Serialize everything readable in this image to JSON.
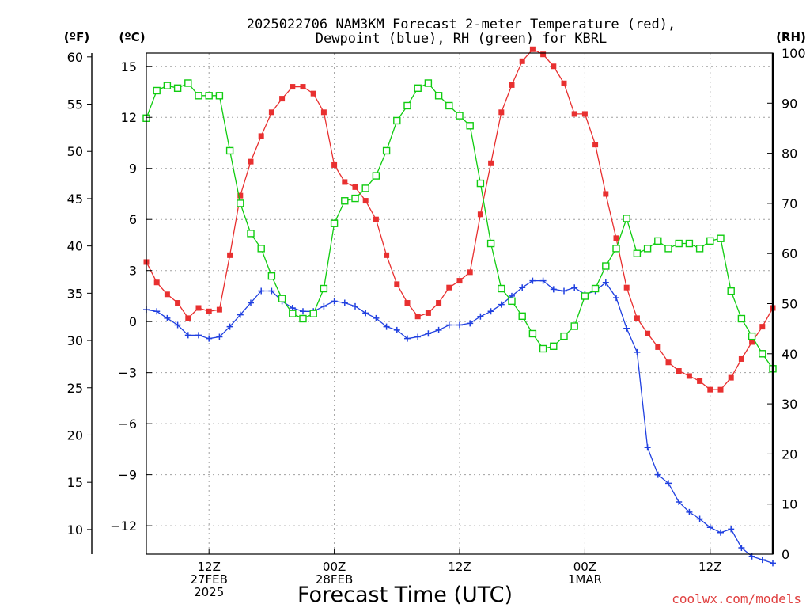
{
  "chart_data": {
    "type": "line",
    "title_line1": "2025022706 NAM3KM Forecast 2-meter Temperature (red),",
    "title_line2": "Dewpoint (blue), RH (green) for KBRL",
    "xlabel": "Forecast Time (UTC)",
    "watermark": "coolwx.com/models",
    "unit_labels": {
      "fahrenheit": "(ºF)",
      "celsius": "(ºC)",
      "rh": "(RH)"
    },
    "x_range_hours": [
      0,
      60
    ],
    "celsius_range": [
      -13.67,
      15.78
    ],
    "rh_range": [
      0,
      100
    ],
    "x_ticks": [
      {
        "hour": 6,
        "line1": "12Z",
        "line2": "27FEB",
        "line3": "2025"
      },
      {
        "hour": 18,
        "line1": "00Z",
        "line2": "28FEB",
        "line3": ""
      },
      {
        "hour": 30,
        "line1": "12Z",
        "line2": "",
        "line3": ""
      },
      {
        "hour": 42,
        "line1": "00Z",
        "line2": "1MAR",
        "line3": ""
      },
      {
        "hour": 54,
        "line1": "12Z",
        "line2": "",
        "line3": ""
      }
    ],
    "celsius_ticks": [
      {
        "value": 15,
        "label": "15"
      },
      {
        "value": 12,
        "label": "12"
      },
      {
        "value": 9,
        "label": "9"
      },
      {
        "value": 6,
        "label": "6"
      },
      {
        "value": 3,
        "label": "3"
      },
      {
        "value": 0,
        "label": "0"
      },
      {
        "value": -3,
        "label": "−3"
      },
      {
        "value": -6,
        "label": "−6"
      },
      {
        "value": -9,
        "label": "−9"
      },
      {
        "value": -12,
        "label": "−12"
      }
    ],
    "fahrenheit_ticks": [
      {
        "value": 60,
        "label": "60"
      },
      {
        "value": 55,
        "label": "55"
      },
      {
        "value": 50,
        "label": "50"
      },
      {
        "value": 45,
        "label": "45"
      },
      {
        "value": 40,
        "label": "40"
      },
      {
        "value": 35,
        "label": "35"
      },
      {
        "value": 30,
        "label": "30"
      },
      {
        "value": 25,
        "label": "25"
      },
      {
        "value": 20,
        "label": "20"
      },
      {
        "value": 15,
        "label": "15"
      },
      {
        "value": 10,
        "label": "10"
      }
    ],
    "rh_ticks": [
      {
        "value": 100,
        "label": "100"
      },
      {
        "value": 90,
        "label": "90"
      },
      {
        "value": 80,
        "label": "80"
      },
      {
        "value": 70,
        "label": "70"
      },
      {
        "value": 60,
        "label": "60"
      },
      {
        "value": 50,
        "label": "50"
      },
      {
        "value": 40,
        "label": "40"
      },
      {
        "value": 30,
        "label": "30"
      },
      {
        "value": 20,
        "label": "20"
      },
      {
        "value": 10,
        "label": "10"
      },
      {
        "value": 0,
        "label": "0"
      }
    ],
    "grid": true,
    "series": [
      {
        "color": "#e83030",
        "marker": "filled-square",
        "axis": "celsius",
        "hours": [
          0,
          1,
          2,
          3,
          4,
          5,
          6,
          7,
          8,
          9,
          10,
          11,
          12,
          13,
          14,
          15,
          16,
          17,
          18,
          19,
          20,
          21,
          22,
          23,
          24,
          25,
          26,
          27,
          28,
          29,
          30,
          31,
          32,
          33,
          34,
          35,
          36,
          37,
          38,
          39,
          40,
          41,
          42,
          43,
          44,
          45,
          46,
          47,
          48,
          49,
          50,
          51,
          52,
          53,
          54,
          55,
          56,
          57,
          58,
          59,
          60
        ],
        "values": [
          3.5,
          2.3,
          1.6,
          1.1,
          0.2,
          0.8,
          0.6,
          0.7,
          3.9,
          7.4,
          9.4,
          10.9,
          12.3,
          13.1,
          13.8,
          13.8,
          13.4,
          12.3,
          9.2,
          8.2,
          7.9,
          7.1,
          6.0,
          3.9,
          2.2,
          1.1,
          0.3,
          0.5,
          1.1,
          2.0,
          2.4,
          2.9,
          6.3,
          9.3,
          12.3,
          13.9,
          15.3,
          16.0,
          15.7,
          15.0,
          14.0,
          12.2,
          12.2,
          10.4,
          7.5,
          4.9,
          2.0,
          0.2,
          -0.7,
          -1.5,
          -2.4,
          -2.9,
          -3.2,
          -3.5,
          -4.0,
          -4.0,
          -3.3,
          -2.2,
          -1.2,
          -0.3,
          0.8
        ]
      },
      {
        "color": "#2040e0",
        "marker": "plus",
        "axis": "celsius",
        "hours": [
          0,
          1,
          2,
          3,
          4,
          5,
          6,
          7,
          8,
          9,
          10,
          11,
          12,
          13,
          14,
          15,
          16,
          17,
          18,
          19,
          20,
          21,
          22,
          23,
          24,
          25,
          26,
          27,
          28,
          29,
          30,
          31,
          32,
          33,
          34,
          35,
          36,
          37,
          38,
          39,
          40,
          41,
          42,
          43,
          44,
          45,
          46,
          47,
          48,
          49,
          50,
          51,
          52,
          53,
          54,
          55,
          56,
          57,
          58,
          59,
          60
        ],
        "values": [
          0.7,
          0.6,
          0.2,
          -0.2,
          -0.8,
          -0.8,
          -1.0,
          -0.9,
          -0.3,
          0.4,
          1.1,
          1.8,
          1.8,
          1.2,
          0.8,
          0.6,
          0.6,
          0.9,
          1.2,
          1.1,
          0.9,
          0.5,
          0.2,
          -0.3,
          -0.5,
          -1.0,
          -0.9,
          -0.7,
          -0.5,
          -0.2,
          -0.2,
          -0.1,
          0.3,
          0.6,
          1.0,
          1.5,
          2.0,
          2.4,
          2.4,
          1.9,
          1.8,
          2.0,
          1.6,
          1.8,
          2.3,
          1.4,
          -0.4,
          -1.8,
          -7.4,
          -9.0,
          -9.5,
          -10.6,
          -11.2,
          -11.6,
          -12.1,
          -12.4,
          -12.2,
          -13.3,
          -13.8,
          -14.0,
          -14.2
        ]
      },
      {
        "color": "#10cc10",
        "marker": "open-square",
        "axis": "rh",
        "hours": [
          0,
          1,
          2,
          3,
          4,
          5,
          6,
          7,
          8,
          9,
          10,
          11,
          12,
          13,
          14,
          15,
          16,
          17,
          18,
          19,
          20,
          21,
          22,
          23,
          24,
          25,
          26,
          27,
          28,
          29,
          30,
          31,
          32,
          33,
          34,
          35,
          36,
          37,
          38,
          39,
          40,
          41,
          42,
          43,
          44,
          45,
          46,
          47,
          48,
          49,
          50,
          51,
          52,
          53,
          54,
          55,
          56,
          57,
          58,
          59,
          60
        ],
        "values": [
          87,
          92.5,
          93.5,
          93,
          94,
          91.5,
          91.5,
          91.5,
          80.5,
          70,
          64,
          61,
          55.5,
          51,
          48,
          47,
          48,
          53,
          66,
          70.5,
          71,
          73,
          75.5,
          80.5,
          86.5,
          89.5,
          93,
          94,
          91.5,
          89.5,
          87.5,
          85.5,
          74,
          62,
          53,
          50.5,
          47.5,
          44,
          41,
          41.5,
          43.5,
          45.5,
          51.5,
          53,
          57.5,
          61,
          67,
          60,
          61,
          62.5,
          61,
          62,
          62,
          61,
          62.5,
          63,
          52.5,
          47,
          43.5,
          40,
          37
        ]
      }
    ]
  }
}
